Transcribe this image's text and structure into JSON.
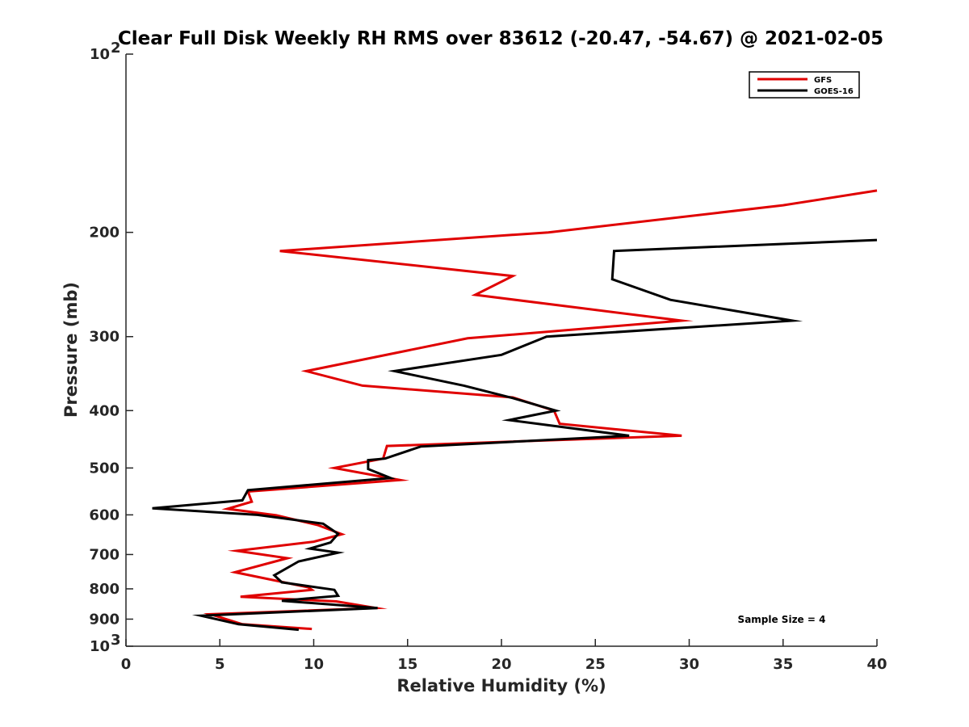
{
  "chart_data": {
    "type": "line",
    "title": "Clear Full Disk Weekly RH RMS over 83612 (-20.47, -54.67) @ 2021-02-05",
    "xlabel": "Relative Humidity (%)",
    "ylabel": "Pressure (mb)",
    "xlim": [
      0,
      40
    ],
    "ylim": [
      100,
      1000
    ],
    "y_scale": "log",
    "y_reversed": true,
    "grid": false,
    "legend_position": "top-right",
    "x_ticks": [
      "0",
      "5",
      "10",
      "15",
      "20",
      "25",
      "30",
      "35",
      "40"
    ],
    "y_ticks": [
      {
        "value": 100,
        "base": "10",
        "exp": "2"
      },
      {
        "value": 200,
        "label": "200"
      },
      {
        "value": 300,
        "label": "300"
      },
      {
        "value": 400,
        "label": "400"
      },
      {
        "value": 500,
        "label": "500"
      },
      {
        "value": 600,
        "label": "600"
      },
      {
        "value": 700,
        "label": "700"
      },
      {
        "value": 800,
        "label": "800"
      },
      {
        "value": 900,
        "label": "900"
      },
      {
        "value": 1000,
        "base": "10",
        "exp": "3"
      }
    ],
    "annotation": "Sample Size = 4",
    "series": [
      {
        "name": "GFS",
        "color": "#e00000",
        "points": [
          {
            "x": 40.0,
            "y": 170
          },
          {
            "x": 35.0,
            "y": 180
          },
          {
            "x": 22.5,
            "y": 200
          },
          {
            "x": 8.2,
            "y": 215
          },
          {
            "x": 20.6,
            "y": 237
          },
          {
            "x": 18.6,
            "y": 255
          },
          {
            "x": 29.6,
            "y": 282
          },
          {
            "x": 18.2,
            "y": 302
          },
          {
            "x": 9.6,
            "y": 343
          },
          {
            "x": 12.6,
            "y": 363
          },
          {
            "x": 20.6,
            "y": 380
          },
          {
            "x": 22.8,
            "y": 400
          },
          {
            "x": 23.1,
            "y": 421
          },
          {
            "x": 29.6,
            "y": 441
          },
          {
            "x": 13.9,
            "y": 459
          },
          {
            "x": 13.7,
            "y": 482
          },
          {
            "x": 11.1,
            "y": 500
          },
          {
            "x": 14.6,
            "y": 524
          },
          {
            "x": 6.5,
            "y": 548
          },
          {
            "x": 6.7,
            "y": 570
          },
          {
            "x": 5.4,
            "y": 586
          },
          {
            "x": 8.0,
            "y": 601
          },
          {
            "x": 10.2,
            "y": 624
          },
          {
            "x": 11.5,
            "y": 647
          },
          {
            "x": 10.0,
            "y": 666
          },
          {
            "x": 5.9,
            "y": 690
          },
          {
            "x": 8.6,
            "y": 710
          },
          {
            "x": 5.8,
            "y": 750
          },
          {
            "x": 9.7,
            "y": 795
          },
          {
            "x": 9.9,
            "y": 803
          },
          {
            "x": 6.1,
            "y": 825
          },
          {
            "x": 11.2,
            "y": 840
          },
          {
            "x": 13.3,
            "y": 862
          },
          {
            "x": 4.5,
            "y": 883
          },
          {
            "x": 6.2,
            "y": 918
          },
          {
            "x": 9.9,
            "y": 935
          }
        ]
      },
      {
        "name": "GOES-16",
        "color": "#000000",
        "points": [
          {
            "x": 40.0,
            "y": 206
          },
          {
            "x": 26.0,
            "y": 215
          },
          {
            "x": 25.9,
            "y": 240
          },
          {
            "x": 29.0,
            "y": 260
          },
          {
            "x": 35.5,
            "y": 282
          },
          {
            "x": 22.4,
            "y": 300
          },
          {
            "x": 20.0,
            "y": 322
          },
          {
            "x": 14.3,
            "y": 343
          },
          {
            "x": 18.0,
            "y": 363
          },
          {
            "x": 20.6,
            "y": 381
          },
          {
            "x": 22.9,
            "y": 400
          },
          {
            "x": 20.4,
            "y": 415
          },
          {
            "x": 26.8,
            "y": 441
          },
          {
            "x": 15.7,
            "y": 460
          },
          {
            "x": 13.8,
            "y": 482
          },
          {
            "x": 12.9,
            "y": 485
          },
          {
            "x": 12.9,
            "y": 502
          },
          {
            "x": 14.1,
            "y": 520
          },
          {
            "x": 6.5,
            "y": 545
          },
          {
            "x": 6.2,
            "y": 567
          },
          {
            "x": 1.4,
            "y": 585
          },
          {
            "x": 7.0,
            "y": 600
          },
          {
            "x": 10.5,
            "y": 621
          },
          {
            "x": 11.3,
            "y": 646
          },
          {
            "x": 10.9,
            "y": 668
          },
          {
            "x": 9.8,
            "y": 684
          },
          {
            "x": 11.3,
            "y": 695
          },
          {
            "x": 9.2,
            "y": 719
          },
          {
            "x": 7.9,
            "y": 759
          },
          {
            "x": 8.3,
            "y": 780
          },
          {
            "x": 11.1,
            "y": 803
          },
          {
            "x": 11.3,
            "y": 822
          },
          {
            "x": 8.3,
            "y": 838
          },
          {
            "x": 13.4,
            "y": 862
          },
          {
            "x": 4.0,
            "y": 888
          },
          {
            "x": 6.0,
            "y": 918
          },
          {
            "x": 9.2,
            "y": 938
          }
        ]
      }
    ]
  }
}
